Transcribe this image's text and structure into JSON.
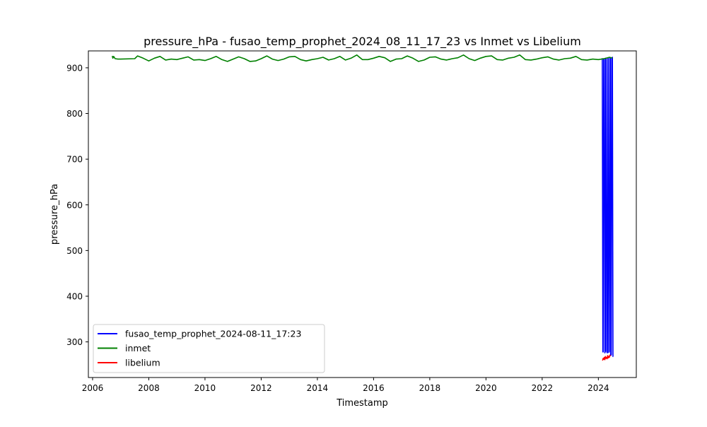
{
  "chart_data": {
    "type": "line",
    "title": "pressure_hPa - fusao_temp_prophet_2024_08_11_17_23 vs Inmet vs Libelium",
    "xlabel": "Timestamp",
    "ylabel": "pressure_hPa",
    "xlim": [
      2005.85,
      2025.35
    ],
    "ylim": [
      222,
      937
    ],
    "x_ticks": [
      2006,
      2008,
      2010,
      2012,
      2014,
      2016,
      2018,
      2020,
      2022,
      2024
    ],
    "x_tick_labels": [
      "2006",
      "2008",
      "2010",
      "2012",
      "2014",
      "2016",
      "2018",
      "2020",
      "2022",
      "2024"
    ],
    "y_ticks": [
      300,
      400,
      500,
      600,
      700,
      800,
      900
    ],
    "y_tick_labels": [
      "300",
      "400",
      "500",
      "600",
      "700",
      "800",
      "900"
    ],
    "grid": false,
    "legend_position": "lower-left",
    "series": [
      {
        "name": "fusao_temp_prophet_2024-08-11_17:23",
        "color": "#0000ff",
        "x": [
          2024.12,
          2024.14,
          2024.16,
          2024.17,
          2024.19,
          2024.21,
          2024.23,
          2024.25,
          2024.26,
          2024.28,
          2024.3,
          2024.32,
          2024.34,
          2024.35,
          2024.37,
          2024.39,
          2024.41,
          2024.43,
          2024.44,
          2024.46,
          2024.48,
          2024.5,
          2024.52,
          2024.53
        ],
        "y": [
          920,
          920,
          278,
          278,
          920,
          918,
          276,
          280,
          921,
          919,
          278,
          276,
          920,
          921,
          277,
          279,
          922,
          920,
          270,
          272,
          921,
          923,
          268,
          268
        ]
      },
      {
        "name": "inmet",
        "color": "#008000",
        "x": [
          2006.7,
          2006.72,
          2006.75,
          2006.8,
          2006.9,
          2007.0,
          2007.5,
          2007.6,
          2007.8,
          2008.0,
          2008.2,
          2008.4,
          2008.6,
          2008.8,
          2009.0,
          2009.2,
          2009.4,
          2009.6,
          2009.8,
          2010.0,
          2010.2,
          2010.4,
          2010.6,
          2010.8,
          2011.0,
          2011.2,
          2011.4,
          2011.6,
          2011.8,
          2012.0,
          2012.2,
          2012.4,
          2012.6,
          2012.8,
          2013.0,
          2013.2,
          2013.4,
          2013.6,
          2013.8,
          2014.0,
          2014.2,
          2014.4,
          2014.6,
          2014.8,
          2015.0,
          2015.2,
          2015.4,
          2015.6,
          2015.8,
          2016.0,
          2016.2,
          2016.4,
          2016.6,
          2016.8,
          2017.0,
          2017.2,
          2017.4,
          2017.6,
          2017.8,
          2018.0,
          2018.2,
          2018.4,
          2018.6,
          2018.8,
          2019.0,
          2019.2,
          2019.4,
          2019.6,
          2019.8,
          2020.0,
          2020.2,
          2020.4,
          2020.6,
          2020.8,
          2021.0,
          2021.2,
          2021.4,
          2021.6,
          2021.8,
          2022.0,
          2022.2,
          2022.4,
          2022.6,
          2022.8,
          2023.0,
          2023.2,
          2023.4,
          2023.6,
          2023.8,
          2024.0,
          2024.2,
          2024.4,
          2024.5
        ],
        "y": [
          926,
          921,
          925,
          920,
          919,
          919,
          920,
          926,
          921,
          915,
          921,
          925,
          917,
          919,
          918,
          921,
          924,
          917,
          918,
          916,
          920,
          925,
          918,
          914,
          919,
          924,
          920,
          914,
          915,
          920,
          926,
          919,
          916,
          919,
          924,
          925,
          918,
          915,
          918,
          920,
          923,
          917,
          920,
          925,
          917,
          921,
          928,
          918,
          918,
          921,
          925,
          922,
          914,
          919,
          920,
          926,
          921,
          914,
          917,
          923,
          924,
          919,
          917,
          920,
          922,
          928,
          920,
          916,
          921,
          925,
          926,
          918,
          917,
          921,
          923,
          928,
          918,
          917,
          919,
          922,
          924,
          919,
          917,
          920,
          921,
          925,
          918,
          917,
          919,
          918,
          920,
          923,
          921
        ]
      },
      {
        "name": "libelium",
        "color": "#ff0000",
        "x": [
          2024.15,
          2024.17,
          2024.19,
          2024.21,
          2024.23,
          2024.25,
          2024.27,
          2024.29,
          2024.31,
          2024.33,
          2024.35,
          2024.37,
          2024.39,
          2024.41,
          2024.43
        ],
        "y": [
          259,
          264,
          262,
          266,
          261,
          268,
          264,
          266,
          263,
          270,
          265,
          268,
          266,
          271,
          269
        ]
      }
    ]
  }
}
